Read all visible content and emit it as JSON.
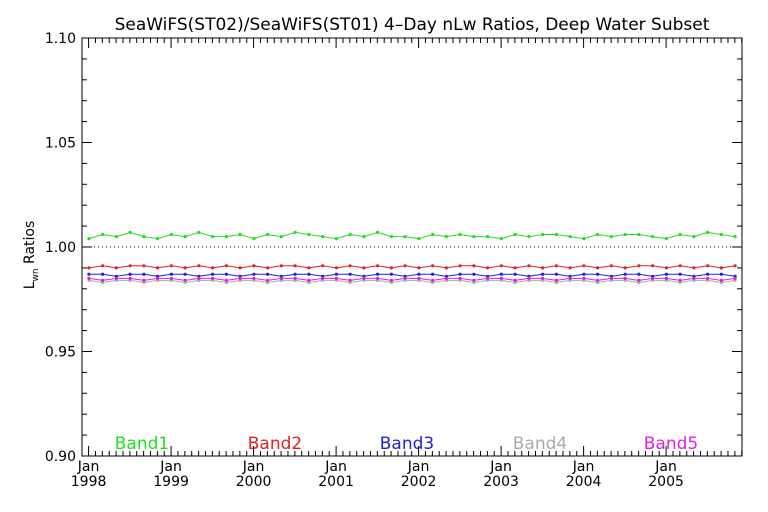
{
  "chart_data": {
    "type": "line",
    "title": "SeaWiFS(ST02)/SeaWiFS(ST01) 4–Day nLw Ratios, Deep Water Subset",
    "ylabel_main": "L",
    "ylabel_sub": "wn",
    "ylabel_rest": " Ratios",
    "ylim": [
      0.9,
      1.1
    ],
    "y_ticks": [
      {
        "value": 0.9,
        "label": "0.90"
      },
      {
        "value": 0.95,
        "label": "0.95"
      },
      {
        "value": 1.0,
        "label": "1.00"
      },
      {
        "value": 1.05,
        "label": "1.05"
      },
      {
        "value": 1.1,
        "label": "1.10"
      }
    ],
    "y_minor_step": 0.01,
    "xlim": [
      1997.92,
      2005.92
    ],
    "x_ticks": [
      {
        "value": 1998.0,
        "month": "Jan",
        "year": "1998"
      },
      {
        "value": 1999.0,
        "month": "Jan",
        "year": "1999"
      },
      {
        "value": 2000.0,
        "month": "Jan",
        "year": "2000"
      },
      {
        "value": 2001.0,
        "month": "Jan",
        "year": "2001"
      },
      {
        "value": 2002.0,
        "month": "Jan",
        "year": "2002"
      },
      {
        "value": 2003.0,
        "month": "Jan",
        "year": "2003"
      },
      {
        "value": 2004.0,
        "month": "Jan",
        "year": "2004"
      },
      {
        "value": 2005.0,
        "month": "Jan",
        "year": "2005"
      }
    ],
    "reference_line": 1.0,
    "series": [
      {
        "name": "Band1",
        "color": "#22dd22",
        "base": 1.005,
        "amplitude": 0.0015,
        "values": [
          1.004,
          1.006,
          1.005,
          1.007,
          1.005,
          1.004,
          1.006,
          1.005,
          1.007,
          1.005,
          1.005,
          1.006,
          1.004,
          1.006,
          1.005,
          1.007,
          1.006,
          1.005,
          1.004,
          1.006,
          1.005,
          1.007,
          1.005,
          1.005,
          1.004,
          1.006,
          1.005,
          1.006,
          1.005,
          1.005,
          1.004,
          1.006,
          1.005,
          1.006,
          1.006,
          1.005,
          1.004,
          1.006,
          1.005,
          1.006,
          1.006,
          1.005,
          1.004,
          1.006,
          1.005,
          1.007,
          1.006,
          1.005
        ]
      },
      {
        "name": "Band2",
        "color": "#dd2222",
        "base": 0.9905,
        "amplitude": 0.0006,
        "values": [
          0.99,
          0.991,
          0.99,
          0.991,
          0.991,
          0.99,
          0.991,
          0.99,
          0.991,
          0.99,
          0.991,
          0.99,
          0.991,
          0.99,
          0.991,
          0.991,
          0.99,
          0.991,
          0.99,
          0.991,
          0.99,
          0.991,
          0.99,
          0.991,
          0.99,
          0.991,
          0.99,
          0.991,
          0.991,
          0.99,
          0.991,
          0.99,
          0.991,
          0.99,
          0.991,
          0.99,
          0.991,
          0.99,
          0.991,
          0.99,
          0.991,
          0.991,
          0.99,
          0.991,
          0.99,
          0.991,
          0.99,
          0.991
        ]
      },
      {
        "name": "Band3",
        "color": "#2222cc",
        "base": 0.987,
        "amplitude": 0.0006,
        "values": [
          0.987,
          0.987,
          0.986,
          0.987,
          0.987,
          0.986,
          0.987,
          0.987,
          0.986,
          0.987,
          0.987,
          0.986,
          0.987,
          0.987,
          0.986,
          0.987,
          0.987,
          0.986,
          0.987,
          0.987,
          0.986,
          0.987,
          0.987,
          0.986,
          0.987,
          0.987,
          0.986,
          0.987,
          0.987,
          0.986,
          0.987,
          0.987,
          0.986,
          0.987,
          0.987,
          0.986,
          0.987,
          0.987,
          0.986,
          0.987,
          0.987,
          0.986,
          0.987,
          0.987,
          0.986,
          0.987,
          0.987,
          0.986
        ]
      },
      {
        "name": "Band4",
        "color": "#aaaaaa",
        "base": 0.984,
        "amplitude": 0.0007,
        "values": [
          0.984,
          0.983,
          0.984,
          0.984,
          0.983,
          0.984,
          0.984,
          0.983,
          0.984,
          0.984,
          0.983,
          0.984,
          0.984,
          0.983,
          0.984,
          0.984,
          0.983,
          0.984,
          0.984,
          0.983,
          0.984,
          0.984,
          0.983,
          0.984,
          0.984,
          0.983,
          0.984,
          0.984,
          0.983,
          0.984,
          0.984,
          0.983,
          0.984,
          0.984,
          0.983,
          0.984,
          0.984,
          0.983,
          0.984,
          0.984,
          0.983,
          0.984,
          0.984,
          0.983,
          0.984,
          0.984,
          0.983,
          0.984
        ]
      },
      {
        "name": "Band5",
        "color": "#dd22dd",
        "base": 0.985,
        "amplitude": 0.0008,
        "values": [
          0.985,
          0.984,
          0.985,
          0.985,
          0.984,
          0.985,
          0.985,
          0.984,
          0.985,
          0.985,
          0.984,
          0.985,
          0.985,
          0.984,
          0.985,
          0.985,
          0.984,
          0.985,
          0.985,
          0.984,
          0.985,
          0.985,
          0.984,
          0.985,
          0.985,
          0.984,
          0.985,
          0.985,
          0.984,
          0.985,
          0.985,
          0.984,
          0.985,
          0.985,
          0.984,
          0.985,
          0.985,
          0.984,
          0.985,
          0.985,
          0.984,
          0.985,
          0.985,
          0.984,
          0.985,
          0.985,
          0.984,
          0.985
        ]
      }
    ],
    "legend_placement": "bottom-inside"
  }
}
